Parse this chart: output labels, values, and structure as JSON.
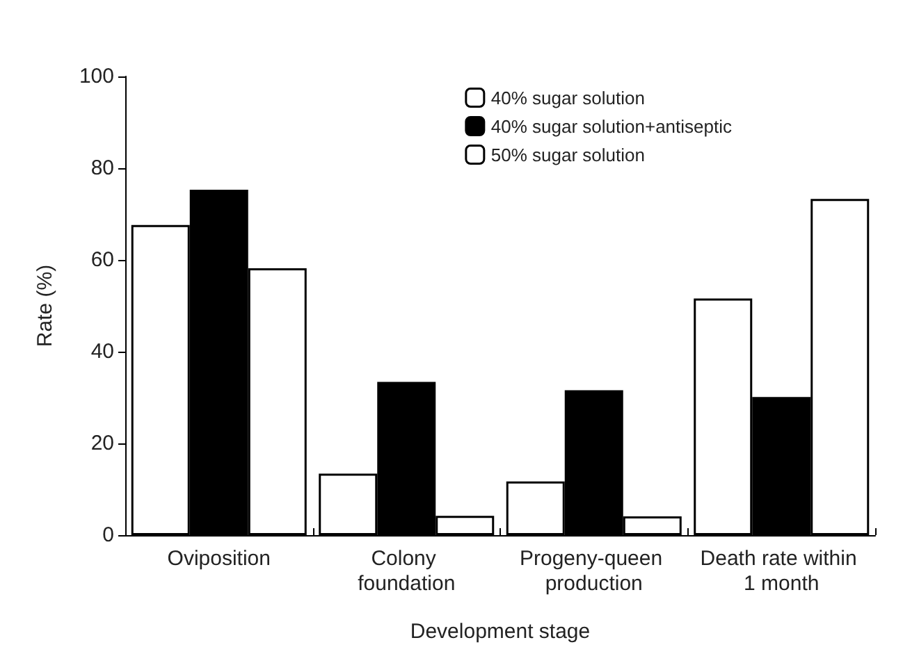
{
  "chart_data": {
    "type": "bar",
    "xlabel": "Development stage",
    "ylabel": "Rate (%)",
    "categories": [
      "Oviposition",
      "Colony foundation",
      "Progeny-queen production",
      "Death rate within 1 month"
    ],
    "series": [
      {
        "name": "40% sugar solution",
        "color": "#ffffff",
        "values": [
          67.6,
          13.4,
          11.7,
          51.6
        ]
      },
      {
        "name": "40% sugar solution+antiseptic",
        "color": "#000000",
        "values": [
          75.3,
          33.4,
          31.6,
          30.1
        ]
      },
      {
        "name": "50% sugar solution",
        "color": "#ffffff",
        "values": [
          58.2,
          4.2,
          4.1,
          73.3
        ]
      }
    ],
    "ylim": [
      0,
      100
    ],
    "yticks": [
      0,
      20,
      40,
      60,
      80,
      100
    ],
    "grid": false,
    "legend": "top right"
  }
}
